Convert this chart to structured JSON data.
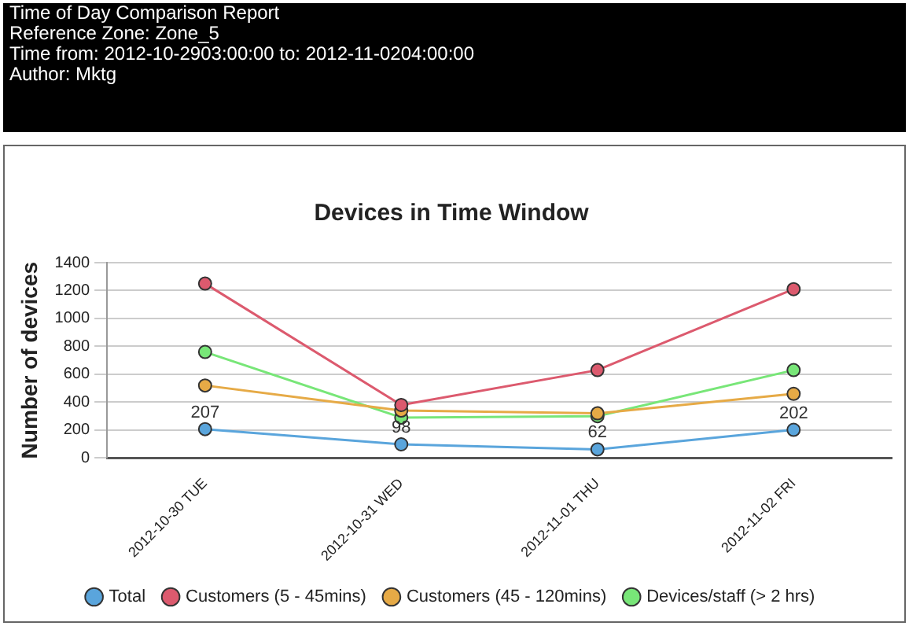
{
  "chart_data": {
    "type": "line",
    "title": "Devices in Time Window",
    "ylabel": "Number of devices",
    "annotations": [
      "Time of Day Comparison Report",
      "Reference Zone: Zone_5",
      "Time from: 2012-10-2903:00:00 to: 2012-11-0204:00:00",
      "Author: Mktg"
    ],
    "categories": [
      "2012-10-30 TUE",
      "2012-10-31 WED",
      "2012-11-01 THU",
      "2012-11-02 FRI"
    ],
    "series": [
      {
        "name": "Total",
        "color": "#5aa5dc",
        "values": [
          207,
          98,
          62,
          202
        ],
        "value_labels": [
          "207",
          "98",
          "62",
          "202"
        ]
      },
      {
        "name": "Customers (5 - 45mins)",
        "color": "#dc5a6e",
        "values": [
          1250,
          380,
          630,
          1210
        ]
      },
      {
        "name": "Customers (45 - 120mins)",
        "color": "#e6aa46",
        "values": [
          520,
          340,
          320,
          460
        ]
      },
      {
        "name": "Devices/staff (> 2 hrs)",
        "color": "#78e678",
        "values": [
          760,
          290,
          300,
          630
        ]
      }
    ],
    "ylim": [
      0,
      1400
    ],
    "yticks": [
      0,
      200,
      400,
      600,
      800,
      1000,
      1200,
      1400
    ],
    "grid": "y",
    "legend": "bottom",
    "marker": "circle",
    "line_style": "solid"
  }
}
